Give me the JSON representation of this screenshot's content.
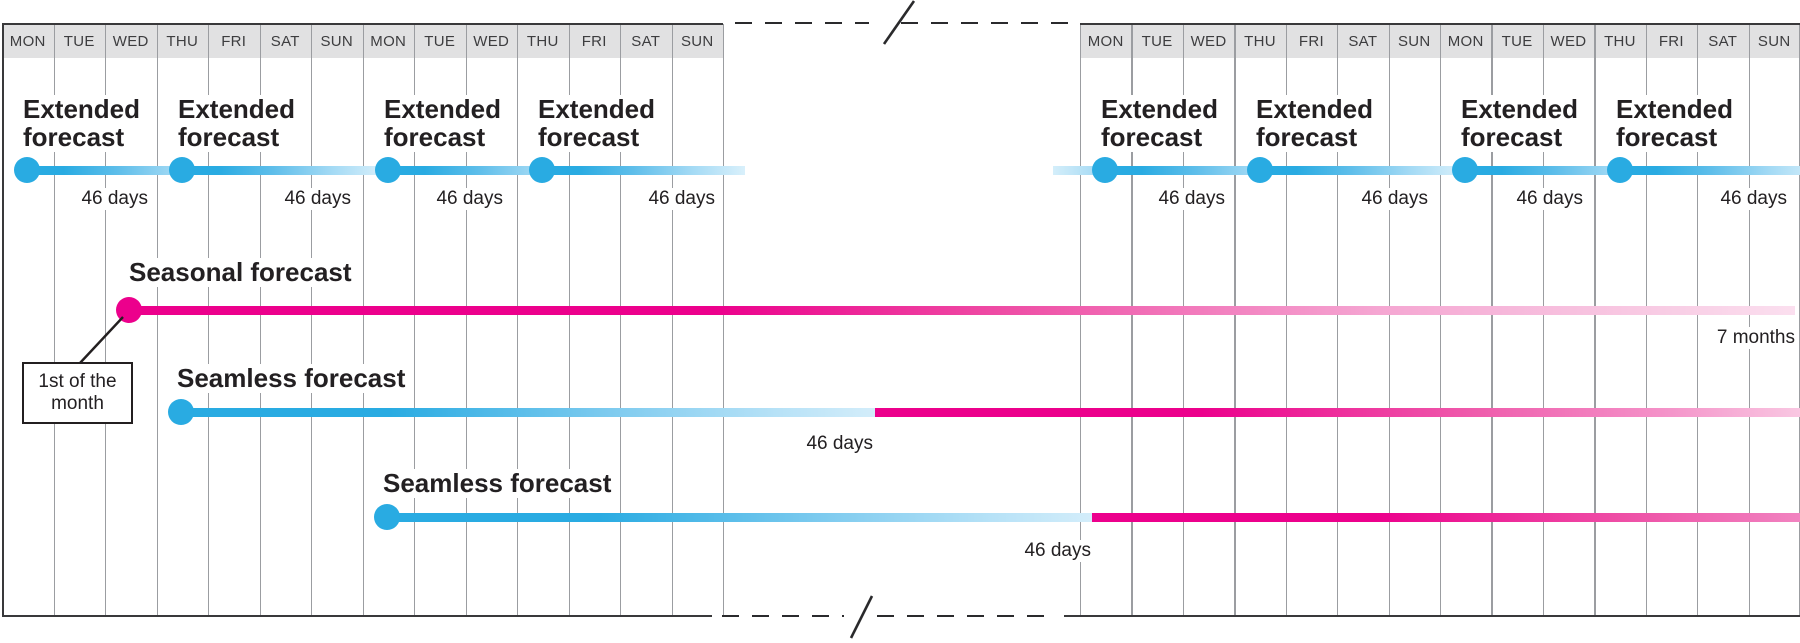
{
  "figure": {
    "title": "Forecast timelines diagram",
    "days": [
      "MON",
      "TUE",
      "WED",
      "THU",
      "FRI",
      "SAT",
      "SUN",
      "MON",
      "TUE",
      "WED",
      "THU",
      "FRI",
      "SAT",
      "SUN"
    ],
    "extended": {
      "label": "Extended\nforecast",
      "duration": "46 days"
    },
    "seasonal": {
      "label": "Seasonal forecast",
      "duration": "7 months",
      "annotation": "1st of the\nmonth"
    },
    "seamless": {
      "label": "Seamless forecast",
      "duration": "46 days"
    },
    "colors": {
      "blue": "#29ABE2",
      "magenta": "#EC008C",
      "header_bg": "#E1E1E2",
      "gridline": "#9B9DA1"
    }
  }
}
